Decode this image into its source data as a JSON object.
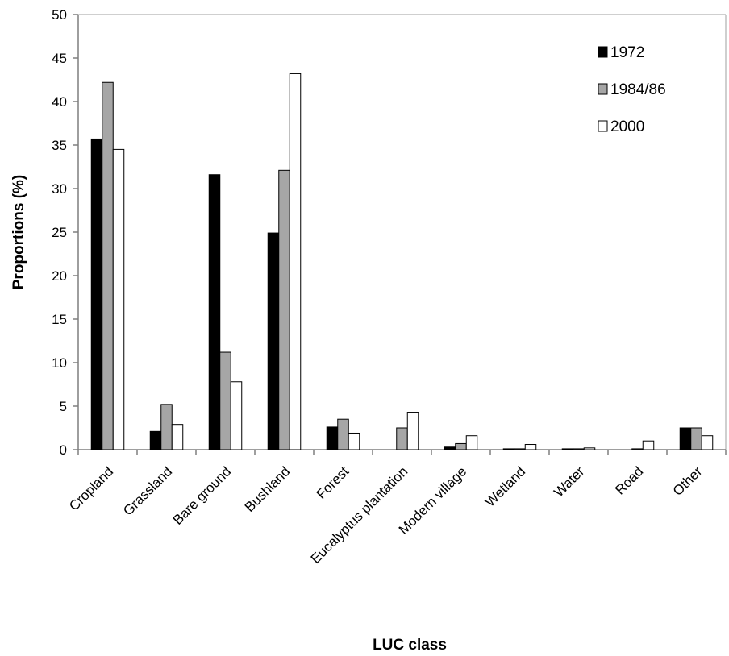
{
  "chart_data": {
    "type": "bar",
    "categories": [
      "Cropland",
      "Grassland",
      "Bare ground",
      "Bushland",
      "Forest",
      "Eucalyptus plantation",
      "Modern village",
      "Wetland",
      "Water",
      "Road",
      "Other"
    ],
    "series": [
      {
        "name": "1972",
        "color": "#000000",
        "values": [
          35.7,
          2.1,
          31.6,
          24.9,
          2.6,
          0,
          0.3,
          0.1,
          0.1,
          0,
          2.5
        ]
      },
      {
        "name": "1984/86",
        "color": "#a6a6a6",
        "values": [
          42.2,
          5.2,
          11.2,
          32.1,
          3.5,
          2.5,
          0.7,
          0.1,
          0.1,
          0.1,
          2.5
        ]
      },
      {
        "name": "2000",
        "color": "#ffffff",
        "values": [
          34.5,
          2.9,
          7.8,
          43.2,
          1.9,
          4.3,
          1.6,
          0.6,
          0.2,
          1.0,
          1.6
        ]
      }
    ],
    "xlabel": "LUC class",
    "ylabel": "Proportions (%)",
    "ylim": [
      0,
      50
    ],
    "yticks": [
      "0",
      "5",
      "10",
      "15",
      "20",
      "25",
      "30",
      "35",
      "40",
      "45",
      "50"
    ],
    "legend_position": "top-right",
    "grid": false
  }
}
